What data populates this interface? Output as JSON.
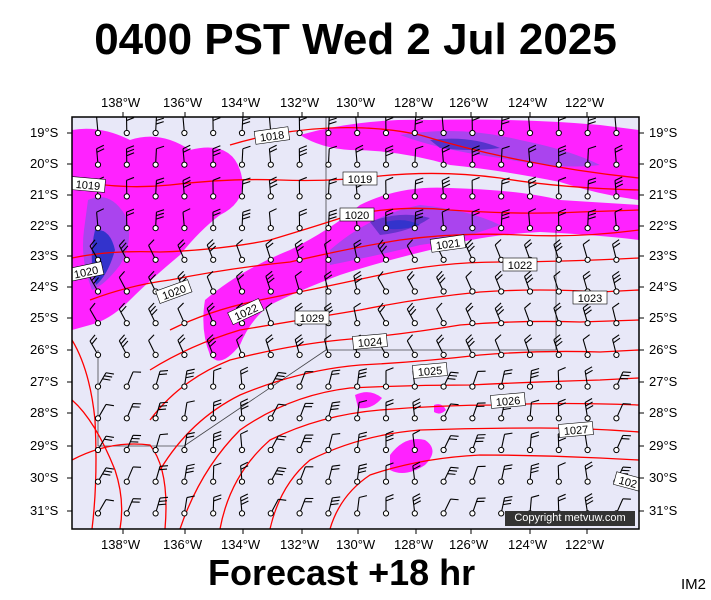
{
  "title": "0400 PST Wed 2 Jul 2025",
  "footer": "Forecast +18 hr",
  "product_code": "IM2",
  "copyright": "Copyright metvuw.com",
  "map": {
    "lon_labels": [
      "138°W",
      "136°W",
      "134°W",
      "132°W",
      "130°W",
      "128°W",
      "126°W",
      "124°W",
      "122°W"
    ],
    "lat_labels": [
      "19°S",
      "20°S",
      "21°S",
      "22°S",
      "23°S",
      "24°S",
      "25°S",
      "26°S",
      "27°S",
      "28°S",
      "29°S",
      "30°S",
      "31°S"
    ],
    "isobar_labels": [
      "1018",
      "1019",
      "1019",
      "1020",
      "1020",
      "1020",
      "1021",
      "1022",
      "1022",
      "1023",
      "1024",
      "1025",
      "1026",
      "1027",
      "1029",
      "102"
    ],
    "colors": {
      "background": "#e8e8f8",
      "isobar": "#ff0000",
      "rain_light": "#ff22ff",
      "rain_medium": "#cc33ee",
      "rain_heavy": "#8833dd",
      "rain_extreme": "#3333cc"
    }
  }
}
